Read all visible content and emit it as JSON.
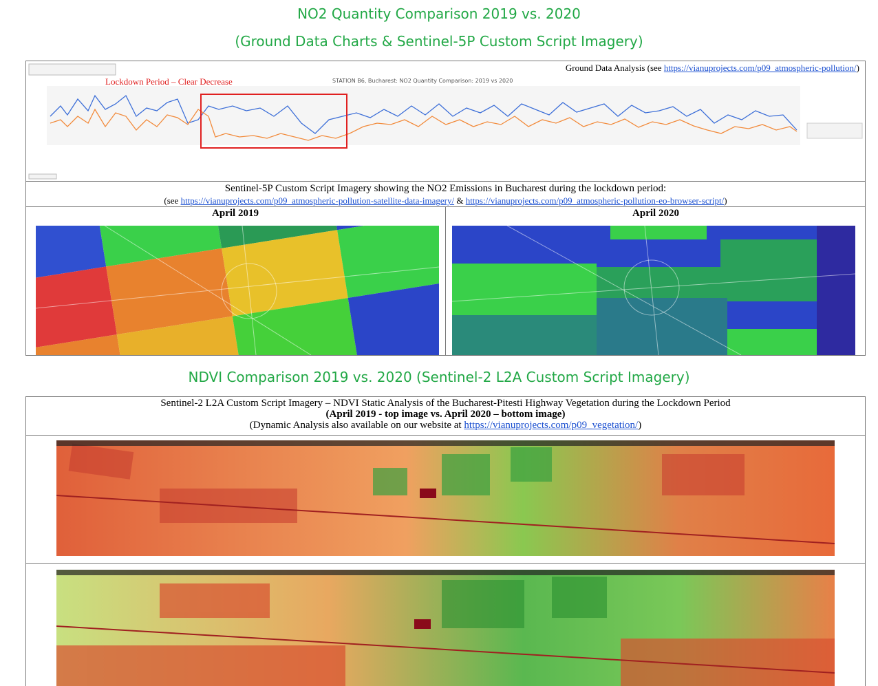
{
  "header": {
    "title": "NO2 Quantity Comparison 2019 vs. 2020",
    "subtitle": "(Ground Data Charts & Sentinel-5P Custom Script Imagery)"
  },
  "ground_panel": {
    "prefix": "Ground Data Analysis (see",
    "link": "https://vianuprojects.com/p09_atmospheric-pollution/",
    "suffix": ")",
    "annotation": "Lockdown Period – Clear Decrease",
    "chart_title": "STATION B6, Bucharest: NO2 Quantity Comparison: 2019 vs 2020"
  },
  "sentinel5p": {
    "heading": "Sentinel-5P Custom Script Imagery showing the NO2 Emissions in Bucharest during the lockdown period:",
    "prefix": "(see",
    "link1": "https://vianuprojects.com/p09_atmospheric-pollution-satellite-data-imagery/",
    "joiner": "&",
    "link2": "https://vianuprojects.com/p09_atmospheric-pollution-eo-browser-script/",
    "suffix": ")",
    "left_label": "April 2019",
    "right_label": "April 2020"
  },
  "ndvi": {
    "title": "NDVI Comparison 2019 vs. 2020 (Sentinel-2 L2A Custom Script Imagery)",
    "line1": "Sentinel-2 L2A Custom Script Imagery – NDVI Static Analysis of the Bucharest-Pitesti Highway Vegetation during the Lockdown Period",
    "line2": "(April 2019 - top image vs. April 2020 – bottom image)",
    "line3_prefix": "(Dynamic Analysis also available on our website at",
    "line3_link": "https://vianuprojects.com/p09_vegetation/",
    "line3_suffix": ")"
  }
}
